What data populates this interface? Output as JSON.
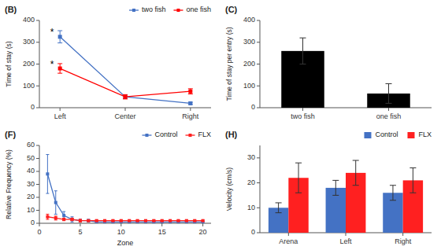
{
  "chart_data": [
    {
      "type": "line",
      "title": "(B)",
      "categories": [
        "Left",
        "Center",
        "Right"
      ],
      "series": [
        {
          "name": "two fish",
          "color": "#4472C4",
          "values": [
            325,
            50,
            20
          ],
          "errors": [
            28,
            8,
            5
          ]
        },
        {
          "name": "one fish",
          "color": "#FF0000",
          "values": [
            180,
            50,
            75
          ],
          "errors": [
            22,
            10,
            12
          ]
        }
      ],
      "marker": "square",
      "ylabel": "Time of stay (s)",
      "ylim": [
        0,
        400
      ],
      "yticks": [
        0,
        100,
        200,
        300,
        400
      ],
      "legend": "upper right",
      "annotations": [
        {
          "text": "*",
          "x": "Left",
          "y": 345
        },
        {
          "text": "*",
          "x": "Left",
          "y": 200
        }
      ]
    },
    {
      "type": "bar",
      "title": "(C)",
      "categories": [
        "two fish",
        "one fish"
      ],
      "values": [
        260,
        65
      ],
      "errors": [
        60,
        45
      ],
      "color": "black",
      "ylabel": "Time of stay per entry (s)",
      "ylim": [
        0,
        400
      ],
      "yticks": [
        0,
        100,
        200,
        300,
        400
      ]
    },
    {
      "type": "line",
      "title": "(F)",
      "x": [
        1,
        2,
        3,
        4,
        5,
        6,
        7,
        8,
        9,
        10,
        11,
        12,
        13,
        14,
        15,
        16,
        17,
        18,
        19,
        20
      ],
      "series": [
        {
          "name": "Control",
          "color": "#4472C4",
          "values": [
            38,
            16,
            6,
            3,
            2,
            2,
            1,
            1,
            1,
            1,
            1,
            1,
            1,
            1,
            1,
            1,
            1,
            1,
            1,
            1
          ],
          "errors": [
            15,
            9,
            3,
            2,
            1,
            1,
            0.5,
            0.5,
            0.5,
            0.5,
            0.5,
            0.5,
            0.5,
            0.5,
            0.5,
            0.5,
            0.5,
            0.5,
            0.5,
            0.5
          ]
        },
        {
          "name": "FLX",
          "color": "#FF2020",
          "values": [
            5,
            4,
            3,
            3,
            2,
            2,
            2,
            2,
            2,
            2,
            2,
            2,
            2,
            2,
            2,
            2,
            2,
            2,
            2,
            2
          ],
          "errors": [
            2,
            1.5,
            1,
            1,
            1,
            0.5,
            0.5,
            0.5,
            0.5,
            0.5,
            0.5,
            0.5,
            0.5,
            0.5,
            0.5,
            0.5,
            0.5,
            0.5,
            0.5,
            0.5
          ]
        }
      ],
      "marker": "square",
      "xlabel": "Zone",
      "ylabel": "Relative Frequency (%)",
      "xlim": [
        0,
        21
      ],
      "xticks": [
        0,
        5,
        10,
        15,
        20
      ],
      "ylim": [
        0,
        60
      ],
      "yticks": [
        0,
        10,
        20,
        30,
        40,
        50,
        60
      ],
      "legend": "upper right"
    },
    {
      "type": "bar",
      "title": "(H)",
      "categories": [
        "Arena",
        "Left",
        "Right"
      ],
      "series": [
        {
          "name": "Control",
          "color": "#4472C4",
          "values": [
            10,
            18,
            16
          ],
          "errors": [
            2,
            3,
            3
          ]
        },
        {
          "name": "FLX",
          "color": "#FF2020",
          "values": [
            22,
            24,
            21
          ],
          "errors": [
            6,
            5,
            5
          ]
        }
      ],
      "ylabel": "Velocity (cm/s)",
      "ylim": [
        0,
        35
      ],
      "yticks": [
        0,
        10,
        20,
        30
      ],
      "legend": "upper right"
    }
  ]
}
